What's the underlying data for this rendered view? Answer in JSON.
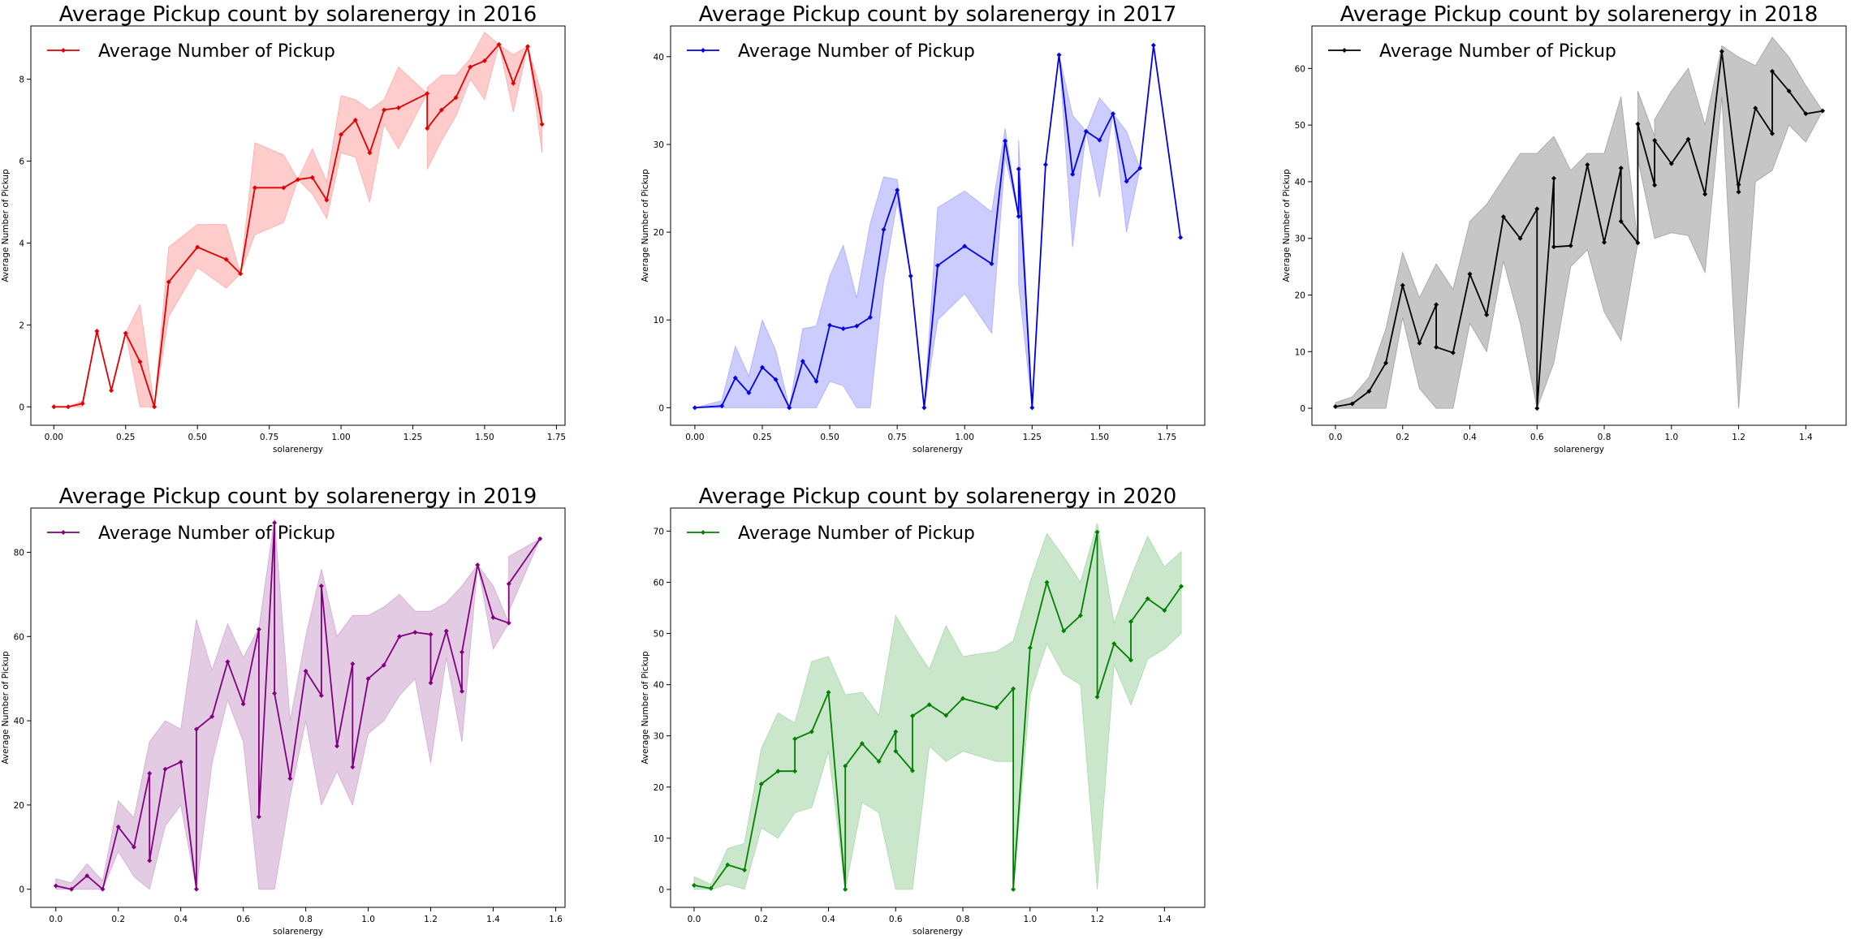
{
  "chart_data": [
    {
      "type": "line",
      "title": "Average Pickup count by solarenergy in 2016",
      "xlabel": "solarenergy",
      "ylabel": "Average Number of Pickup",
      "legend": "Average Number of Pickup",
      "legend_position": "top-left",
      "color": "#e00000",
      "band_color": "#ffaaaa",
      "xlim": [
        -0.08,
        1.78
      ],
      "ylim": [
        -0.45,
        9.3
      ],
      "xticks": [
        0.0,
        0.25,
        0.5,
        0.75,
        1.0,
        1.25,
        1.5,
        1.75
      ],
      "xtick_labels": [
        "0.00",
        "0.25",
        "0.50",
        "0.75",
        "1.00",
        "1.25",
        "1.50",
        "1.75"
      ],
      "yticks": [
        0,
        2,
        4,
        6,
        8
      ],
      "ytick_labels": [
        "0",
        "2",
        "4",
        "6",
        "8"
      ],
      "x": [
        0.0,
        0.05,
        0.1,
        0.15,
        0.2,
        0.25,
        0.3,
        0.35,
        0.4,
        0.5,
        0.6,
        0.65,
        0.7,
        0.8,
        0.85,
        0.9,
        0.95,
        1.0,
        1.05,
        1.1,
        1.15,
        1.2,
        1.3,
        1.3,
        1.35,
        1.4,
        1.45,
        1.5,
        1.55,
        1.6,
        1.65,
        1.7
      ],
      "y": [
        0.0,
        0.0,
        0.08,
        1.85,
        0.4,
        1.8,
        1.1,
        0.0,
        3.05,
        3.9,
        3.6,
        3.25,
        5.35,
        5.35,
        5.55,
        5.6,
        5.05,
        6.65,
        7.0,
        6.2,
        7.25,
        7.3,
        7.65,
        6.8,
        7.25,
        7.55,
        8.3,
        8.45,
        8.85,
        7.9,
        8.8,
        6.9
      ],
      "band_lo": [
        0.0,
        0.0,
        0.0,
        1.85,
        0.4,
        1.8,
        0.0,
        0.0,
        2.2,
        3.4,
        2.9,
        3.25,
        4.2,
        4.5,
        5.55,
        5.2,
        4.6,
        6.2,
        6.1,
        5.0,
        6.9,
        6.3,
        7.65,
        5.8,
        6.5,
        7.1,
        8.0,
        7.5,
        8.85,
        7.2,
        8.8,
        6.2
      ],
      "band_hi": [
        0.0,
        0.0,
        0.15,
        1.85,
        0.4,
        1.8,
        2.5,
        0.0,
        3.9,
        4.45,
        4.45,
        3.25,
        6.45,
        6.15,
        5.55,
        6.3,
        5.5,
        7.6,
        7.5,
        7.25,
        7.5,
        8.3,
        7.65,
        7.8,
        8.1,
        8.1,
        8.5,
        9.15,
        8.85,
        8.6,
        8.8,
        7.6
      ]
    },
    {
      "type": "line",
      "title": "Average Pickup count by solarenergy in 2017",
      "xlabel": "solarenergy",
      "ylabel": "Average Number of Pickup",
      "legend": "Average Number of Pickup",
      "legend_position": "top-left",
      "color": "#0000e6",
      "band_color": "#aaaaff",
      "xlim": [
        -0.09,
        1.89
      ],
      "ylim": [
        -2.0,
        43.5
      ],
      "xticks": [
        0.0,
        0.25,
        0.5,
        0.75,
        1.0,
        1.25,
        1.5,
        1.75
      ],
      "xtick_labels": [
        "0.00",
        "0.25",
        "0.50",
        "0.75",
        "1.00",
        "1.25",
        "1.50",
        "1.75"
      ],
      "yticks": [
        0,
        10,
        20,
        30,
        40
      ],
      "ytick_labels": [
        "0",
        "10",
        "20",
        "30",
        "40"
      ],
      "x": [
        0.0,
        0.1,
        0.15,
        0.2,
        0.25,
        0.3,
        0.35,
        0.4,
        0.45,
        0.5,
        0.55,
        0.6,
        0.65,
        0.7,
        0.75,
        0.8,
        0.85,
        0.9,
        1.0,
        1.1,
        1.15,
        1.2,
        1.2,
        1.25,
        1.3,
        1.35,
        1.4,
        1.45,
        1.5,
        1.55,
        1.6,
        1.65,
        1.7,
        1.8
      ],
      "y": [
        0.0,
        0.2,
        3.4,
        1.7,
        4.6,
        3.2,
        0.0,
        5.3,
        3.0,
        9.4,
        9.0,
        9.3,
        10.3,
        20.3,
        24.8,
        15.0,
        0.0,
        16.2,
        18.4,
        16.4,
        30.4,
        21.8,
        27.2,
        0.0,
        27.7,
        40.2,
        26.6,
        31.5,
        30.5,
        33.5,
        25.8,
        27.3,
        41.3,
        19.4
      ],
      "band_lo": [
        0.0,
        0.0,
        0.0,
        0.0,
        0.0,
        0.0,
        0.0,
        0.0,
        0.0,
        3.0,
        2.5,
        0.0,
        0.0,
        14.5,
        23.5,
        15.0,
        0.0,
        10.0,
        13.0,
        8.5,
        28.5,
        21.8,
        14.0,
        0.0,
        27.7,
        40.2,
        18.3,
        31.5,
        24.0,
        33.5,
        20.0,
        27.3,
        41.3,
        19.4
      ],
      "band_hi": [
        0.0,
        0.8,
        7.0,
        3.6,
        10.0,
        6.5,
        0.0,
        9.0,
        9.3,
        15.0,
        18.5,
        12.5,
        21.0,
        26.3,
        26.0,
        15.0,
        0.0,
        22.8,
        24.7,
        22.3,
        31.8,
        21.8,
        30.5,
        0.0,
        27.7,
        40.2,
        33.3,
        31.5,
        35.3,
        33.5,
        31.5,
        27.3,
        41.3,
        19.4
      ]
    },
    {
      "type": "line",
      "title": "Average Pickup count by solarenergy in 2018",
      "xlabel": "solarenergy",
      "ylabel": "Average Number of Pickup",
      "legend": "Average Number of Pickup",
      "legend_position": "top-left",
      "color": "#000000",
      "band_color": "#a0a0a0",
      "xlim": [
        -0.07,
        1.52
      ],
      "ylim": [
        -3.0,
        67.5
      ],
      "xticks": [
        0.0,
        0.2,
        0.4,
        0.6,
        0.8,
        1.0,
        1.2,
        1.4
      ],
      "xtick_labels": [
        "0.0",
        "0.2",
        "0.4",
        "0.6",
        "0.8",
        "1.0",
        "1.2",
        "1.4"
      ],
      "yticks": [
        0,
        10,
        20,
        30,
        40,
        50,
        60
      ],
      "ytick_labels": [
        "0",
        "10",
        "20",
        "30",
        "40",
        "50",
        "60"
      ],
      "x": [
        0.0,
        0.05,
        0.1,
        0.15,
        0.2,
        0.25,
        0.3,
        0.3,
        0.35,
        0.4,
        0.45,
        0.5,
        0.55,
        0.6,
        0.6,
        0.65,
        0.65,
        0.7,
        0.75,
        0.8,
        0.85,
        0.85,
        0.9,
        0.9,
        0.95,
        0.95,
        1.0,
        1.05,
        1.1,
        1.15,
        1.2,
        1.2,
        1.25,
        1.3,
        1.3,
        1.35,
        1.4,
        1.45
      ],
      "y": [
        0.3,
        0.8,
        3.0,
        8.0,
        21.7,
        11.5,
        18.3,
        10.8,
        9.8,
        23.7,
        16.5,
        33.8,
        30.0,
        35.2,
        0.0,
        40.6,
        28.5,
        28.7,
        43.0,
        29.3,
        42.4,
        33.0,
        29.2,
        50.2,
        39.4,
        47.3,
        43.2,
        47.5,
        37.8,
        63.0,
        38.2,
        39.5,
        53.0,
        48.5,
        59.5,
        56.0,
        52.0,
        52.5
      ],
      "band_lo": [
        0.0,
        0.0,
        0.0,
        0.0,
        16.0,
        3.5,
        0.0,
        0.0,
        0.0,
        15.0,
        10.0,
        26.0,
        15.0,
        0.0,
        0.0,
        8.0,
        8.0,
        25.0,
        28.0,
        17.0,
        12.0,
        12.0,
        29.2,
        44.0,
        30.0,
        30.0,
        31.0,
        30.5,
        24.0,
        55.0,
        0.0,
        0.0,
        40.0,
        42.0,
        42.0,
        50.0,
        47.0,
        52.5
      ],
      "band_hi": [
        1.0,
        2.0,
        5.5,
        14.0,
        27.5,
        19.5,
        25.5,
        25.5,
        21.0,
        33.0,
        36.0,
        40.5,
        45.0,
        45.0,
        45.0,
        48.0,
        48.0,
        42.0,
        45.0,
        45.0,
        55.0,
        55.0,
        29.2,
        56.0,
        48.0,
        51.0,
        56.0,
        60.0,
        50.0,
        64.0,
        62.0,
        62.0,
        60.5,
        65.5,
        65.5,
        62.0,
        57.0,
        52.5
      ]
    },
    {
      "type": "line",
      "title": "Average Pickup count by solarenergy in 2019",
      "xlabel": "solarenergy",
      "ylabel": "Average Number of Pickup",
      "legend": "Average Number of Pickup",
      "legend_position": "top-left",
      "color": "#800080",
      "band_color": "#d2a8d2",
      "xlim": [
        -0.08,
        1.63
      ],
      "ylim": [
        -4.3,
        90.5
      ],
      "xticks": [
        0.0,
        0.2,
        0.4,
        0.6,
        0.8,
        1.0,
        1.2,
        1.4,
        1.6
      ],
      "xtick_labels": [
        "0.0",
        "0.2",
        "0.4",
        "0.6",
        "0.8",
        "1.0",
        "1.2",
        "1.4",
        "1.6"
      ],
      "yticks": [
        0,
        20,
        40,
        60,
        80
      ],
      "ytick_labels": [
        "0",
        "20",
        "40",
        "60",
        "80"
      ],
      "x": [
        0.0,
        0.05,
        0.1,
        0.15,
        0.2,
        0.25,
        0.3,
        0.3,
        0.35,
        0.4,
        0.45,
        0.45,
        0.5,
        0.55,
        0.6,
        0.65,
        0.65,
        0.7,
        0.7,
        0.75,
        0.8,
        0.85,
        0.85,
        0.9,
        0.95,
        0.95,
        1.0,
        1.05,
        1.1,
        1.15,
        1.2,
        1.2,
        1.25,
        1.3,
        1.3,
        1.35,
        1.4,
        1.45,
        1.45,
        1.55
      ],
      "y": [
        0.8,
        0.0,
        3.2,
        0.0,
        14.8,
        10.0,
        27.5,
        6.8,
        28.5,
        30.2,
        0.0,
        38.0,
        41.0,
        54.0,
        44.0,
        61.7,
        17.2,
        87.0,
        46.5,
        26.3,
        51.8,
        46.0,
        72.0,
        34.0,
        53.5,
        29.0,
        50.0,
        53.2,
        60.0,
        61.0,
        60.5,
        49.0,
        61.3,
        47.0,
        56.3,
        77.0,
        64.5,
        63.2,
        72.5,
        83.2
      ],
      "band_lo": [
        0.0,
        0.0,
        0.0,
        0.0,
        9.0,
        3.0,
        0.0,
        0.0,
        15.0,
        20.0,
        0.0,
        0.0,
        30.0,
        45.0,
        35.0,
        0.0,
        0.0,
        0.0,
        0.0,
        22.0,
        40.0,
        20.0,
        20.0,
        28.0,
        20.0,
        20.0,
        37.0,
        40.0,
        46.0,
        50.0,
        30.0,
        30.0,
        55.0,
        35.0,
        35.0,
        77.0,
        57.0,
        63.2,
        66.0,
        83.2
      ],
      "band_hi": [
        2.5,
        1.5,
        6.0,
        2.0,
        21.0,
        17.0,
        35.0,
        35.0,
        40.0,
        38.0,
        64.0,
        64.0,
        52.0,
        63.0,
        55.0,
        62.0,
        62.0,
        88.0,
        88.0,
        40.0,
        60.0,
        76.0,
        76.0,
        60.0,
        65.0,
        65.0,
        65.0,
        67.0,
        70.0,
        66.0,
        66.0,
        66.0,
        68.0,
        72.0,
        72.0,
        77.0,
        72.0,
        63.2,
        79.0,
        83.2
      ]
    },
    {
      "type": "line",
      "title": "Average Pickup count by solarenergy in 2020",
      "xlabel": "solarenergy",
      "ylabel": "Average Number of Pickup",
      "legend": "Average Number of Pickup",
      "legend_position": "top-left",
      "color": "#008000",
      "band_color": "#a9d7a9",
      "xlim": [
        -0.07,
        1.52
      ],
      "ylim": [
        -3.5,
        74.5
      ],
      "xticks": [
        0.0,
        0.2,
        0.4,
        0.6,
        0.8,
        1.0,
        1.2,
        1.4
      ],
      "xtick_labels": [
        "0.0",
        "0.2",
        "0.4",
        "0.6",
        "0.8",
        "1.0",
        "1.2",
        "1.4"
      ],
      "yticks": [
        0,
        10,
        20,
        30,
        40,
        50,
        60,
        70
      ],
      "ytick_labels": [
        "0",
        "10",
        "20",
        "30",
        "40",
        "50",
        "60",
        "70"
      ],
      "x": [
        0.0,
        0.05,
        0.1,
        0.15,
        0.2,
        0.25,
        0.3,
        0.3,
        0.35,
        0.4,
        0.45,
        0.45,
        0.5,
        0.55,
        0.6,
        0.6,
        0.65,
        0.65,
        0.7,
        0.75,
        0.8,
        0.9,
        0.95,
        0.95,
        1.0,
        1.05,
        1.1,
        1.15,
        1.2,
        1.2,
        1.25,
        1.3,
        1.3,
        1.35,
        1.4,
        1.45
      ],
      "y": [
        0.8,
        0.2,
        4.8,
        3.8,
        20.6,
        23.1,
        23.1,
        29.4,
        30.8,
        38.5,
        0.0,
        24.1,
        28.5,
        25.0,
        30.8,
        27.0,
        23.2,
        33.9,
        36.1,
        34.0,
        37.3,
        35.5,
        39.2,
        0.0,
        47.2,
        60.0,
        50.5,
        53.5,
        69.8,
        37.6,
        48.0,
        44.8,
        52.3,
        56.8,
        54.5,
        59.2
      ],
      "band_lo": [
        0.0,
        0.0,
        1.0,
        0.0,
        12.0,
        10.0,
        15.0,
        15.0,
        16.0,
        27.0,
        0.0,
        0.0,
        17.0,
        15.0,
        0.0,
        0.0,
        0.0,
        0.0,
        28.0,
        25.0,
        27.0,
        25.0,
        25.0,
        0.0,
        38.0,
        48.0,
        42.0,
        40.0,
        0.0,
        0.0,
        44.0,
        36.0,
        36.0,
        45.0,
        47.0,
        50.0
      ],
      "band_hi": [
        2.5,
        1.0,
        8.0,
        9.0,
        27.5,
        34.5,
        32.5,
        32.5,
        44.5,
        45.5,
        38.0,
        38.0,
        38.5,
        34.0,
        53.5,
        53.5,
        48.0,
        48.0,
        43.0,
        51.5,
        45.5,
        46.5,
        48.5,
        48.5,
        60.0,
        69.5,
        65.0,
        60.0,
        71.5,
        71.5,
        52.0,
        61.0,
        61.0,
        69.0,
        63.0,
        66.0
      ]
    }
  ]
}
